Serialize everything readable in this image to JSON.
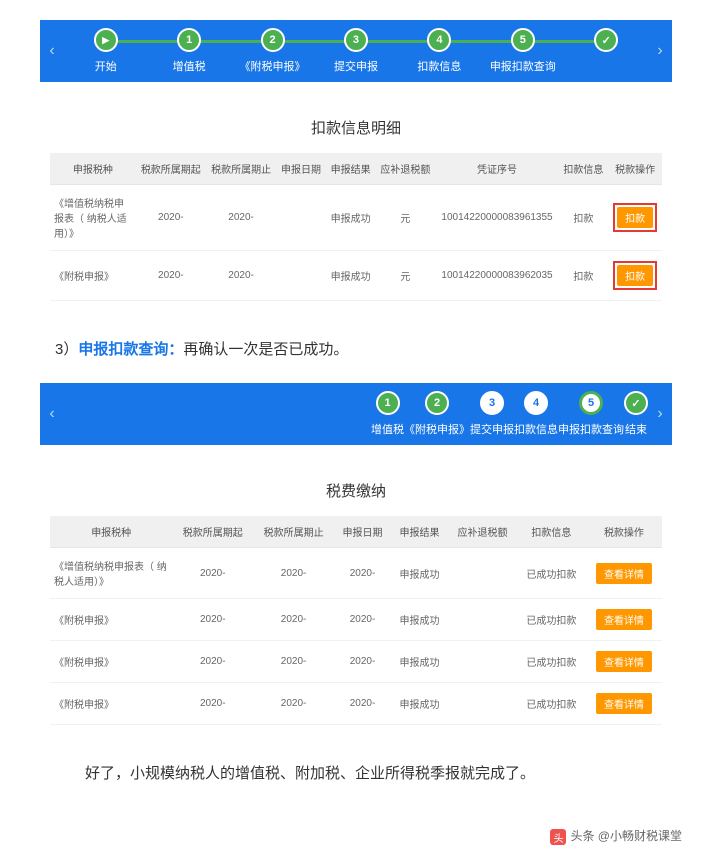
{
  "section1": {
    "stepper": {
      "steps": [
        {
          "num": "▶",
          "label": "开始",
          "cls": "begin"
        },
        {
          "num": "1",
          "label": "增值税",
          "cls": "active"
        },
        {
          "num": "2",
          "label": "《附税申报》",
          "cls": "active"
        },
        {
          "num": "3",
          "label": "提交申报",
          "cls": "active"
        },
        {
          "num": "4",
          "label": "扣款信息",
          "cls": "active"
        },
        {
          "num": "5",
          "label": "申报扣款查询",
          "cls": "active"
        },
        {
          "num": "✓",
          "label": "",
          "cls": "active check"
        }
      ],
      "line_color": "#4caf50"
    },
    "panel": {
      "title": "扣款信息明细",
      "columns": [
        "申报税种",
        "税款所属期起",
        "税款所属期止",
        "申报日期",
        "申报结果",
        "应补退税额",
        "凭证序号",
        "扣款信息",
        "税款操作"
      ],
      "rows": [
        {
          "name": "《增值税纳税申报表（   纳税人适用）》",
          "p1": "2020-",
          "p2": "2020-",
          "date": "",
          "result": "申报成功",
          "amt": "元",
          "seq": "10014220000083961355",
          "info": "扣款",
          "btn": "扣款"
        },
        {
          "name": "《附税申报》",
          "p1": "2020-",
          "p2": "2020-",
          "date": "",
          "result": "申报成功",
          "amt": "元",
          "seq": "10014220000083962035",
          "info": "扣款",
          "btn": "扣款"
        }
      ]
    }
  },
  "midtext": {
    "num": "3）",
    "blue": "申报扣款查询：",
    "rest": "再确认一次是否已成功。"
  },
  "section2": {
    "stepper": {
      "steps": [
        {
          "num": "1",
          "label": "增值税"
        },
        {
          "num": "2",
          "label": "《附税申报》"
        },
        {
          "num": "3",
          "label": "提交申报"
        },
        {
          "num": "4",
          "label": "扣款信息"
        },
        {
          "num": "5",
          "label": "申报扣款查询",
          "current": true
        },
        {
          "num": "✓",
          "label": "结束",
          "cls": "active check"
        }
      ]
    },
    "panel": {
      "title": "税费缴纳",
      "columns": [
        "申报税种",
        "税款所属期起",
        "税款所属期止",
        "申报日期",
        "申报结果",
        "应补退税额",
        "扣款信息",
        "税款操作"
      ],
      "rows": [
        {
          "name": "《增值税纳税申报表（    纳税人适用）》",
          "p1": "2020-",
          "p2": "2020-",
          "date": "2020-",
          "result": "申报成功",
          "amt": "",
          "info": "已成功扣款",
          "btn": "查看详情"
        },
        {
          "name": "《附税申报》",
          "p1": "2020-",
          "p2": "2020-",
          "date": "2020-",
          "result": "申报成功",
          "amt": "",
          "info": "已成功扣款",
          "btn": "查看详情"
        },
        {
          "name": "《附税申报》",
          "p1": "2020-",
          "p2": "2020-",
          "date": "2020-",
          "result": "申报成功",
          "amt": "",
          "info": "已成功扣款",
          "btn": "查看详情"
        },
        {
          "name": "《附税申报》",
          "p1": "2020-",
          "p2": "2020-",
          "date": "2020-",
          "result": "申报成功",
          "amt": "",
          "info": "已成功扣款",
          "btn": "查看详情"
        }
      ]
    }
  },
  "closing": "好了，小规模纳税人的增值税、附加税、企业所得税季报就完成了。",
  "footer": "头条 @小畅财税课堂"
}
